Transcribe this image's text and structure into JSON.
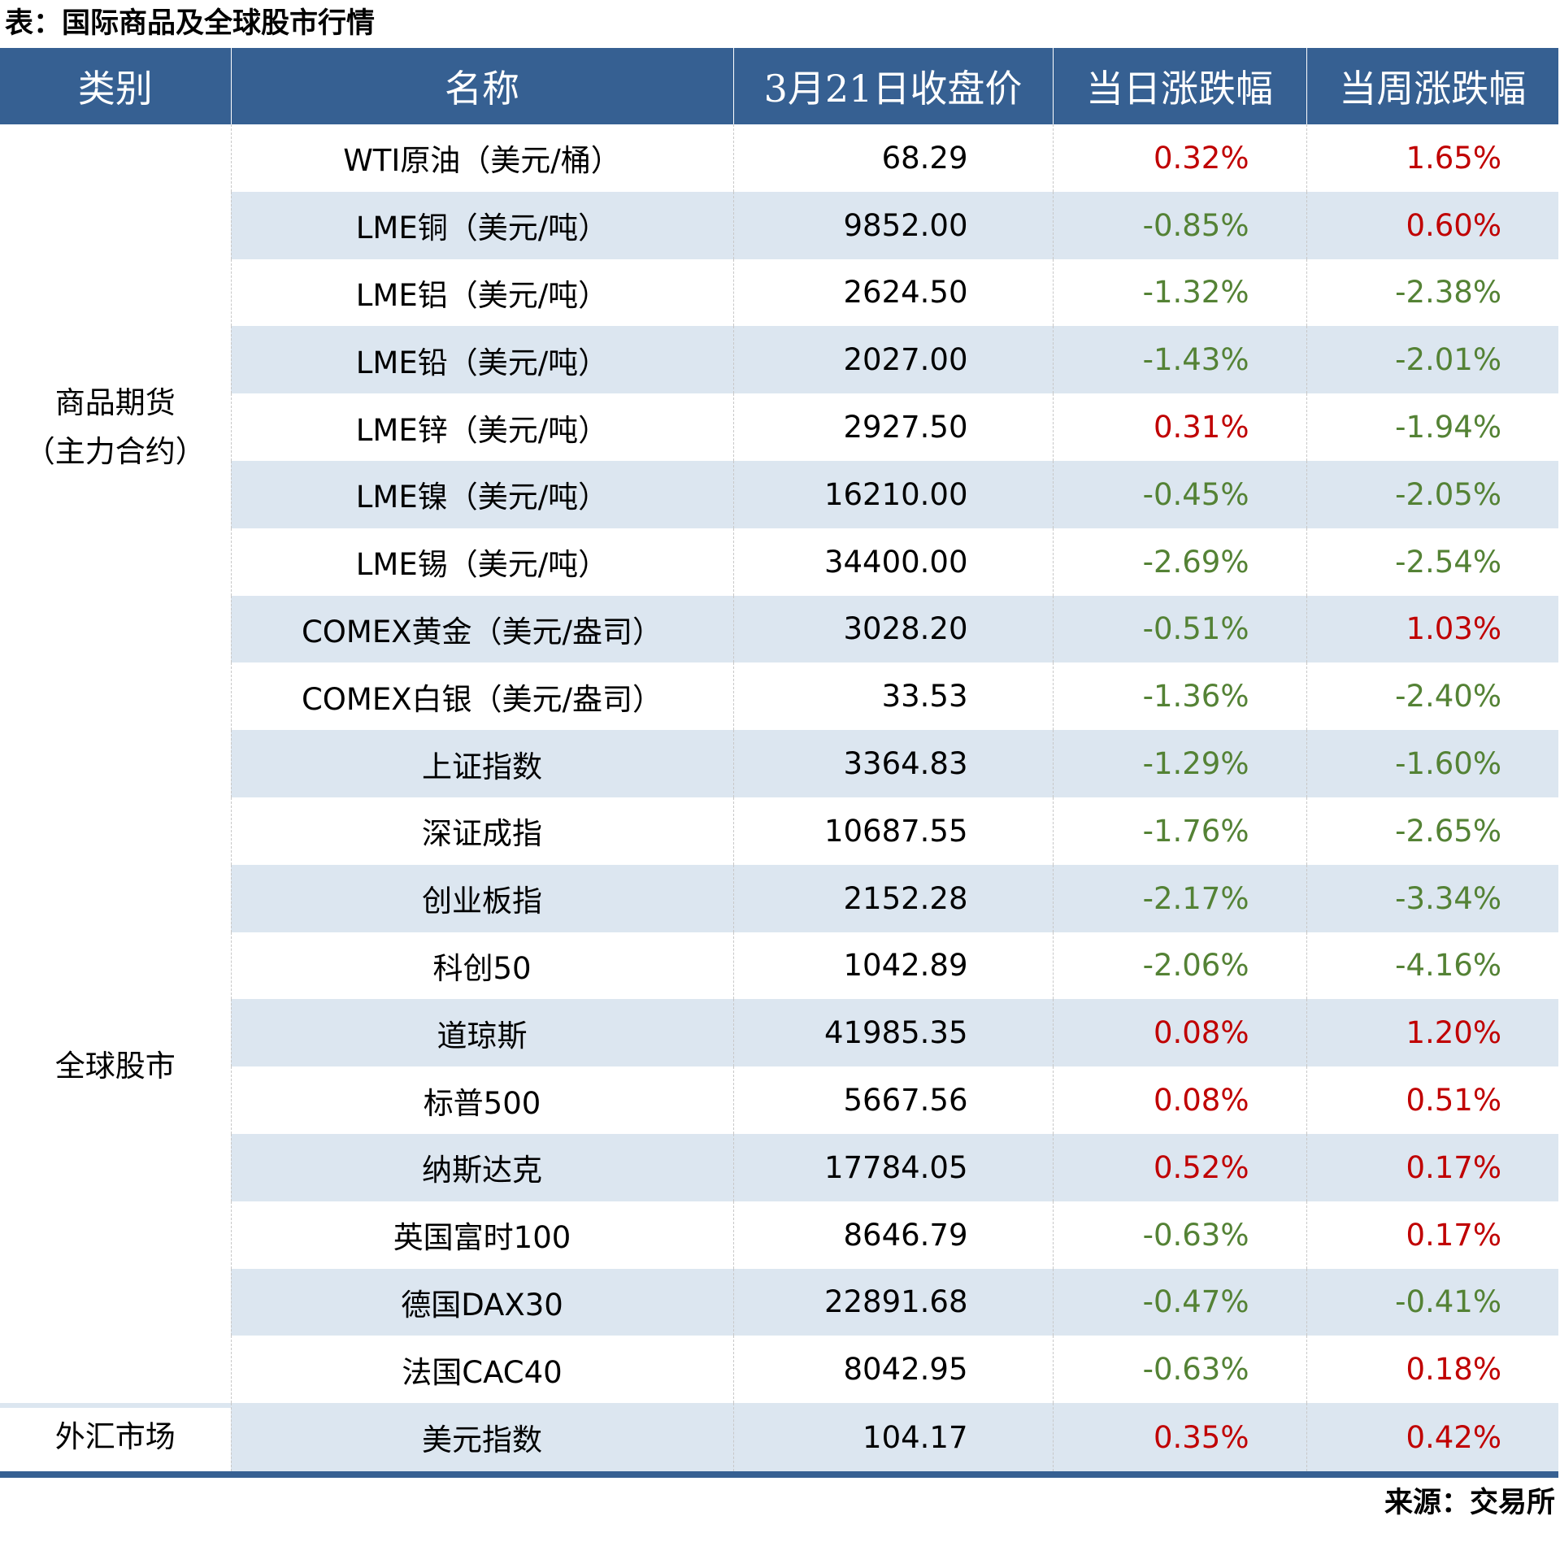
{
  "title": "表：国际商品及全球股市行情",
  "headers": [
    "类别",
    "名称",
    "3月21日收盘价",
    "当日涨跌幅",
    "当周涨跌幅"
  ],
  "colors": {
    "header": "#366092",
    "stripe": "#dce6f0",
    "up": "#c00000",
    "down": "#548235"
  },
  "groups": [
    {
      "label": "商品期货\n（主力合约）",
      "rows": [
        {
          "name": "WTI原油（美元/桶）",
          "close": "68.29",
          "day": "0.32%",
          "week": "1.65%"
        },
        {
          "name": "LME铜（美元/吨）",
          "close": "9852.00",
          "day": "-0.85%",
          "week": "0.60%"
        },
        {
          "name": "LME铝（美元/吨）",
          "close": "2624.50",
          "day": "-1.32%",
          "week": "-2.38%"
        },
        {
          "name": "LME铅（美元/吨）",
          "close": "2027.00",
          "day": "-1.43%",
          "week": "-2.01%"
        },
        {
          "name": "LME锌（美元/吨）",
          "close": "2927.50",
          "day": "0.31%",
          "week": "-1.94%"
        },
        {
          "name": "LME镍（美元/吨）",
          "close": "16210.00",
          "day": "-0.45%",
          "week": "-2.05%"
        },
        {
          "name": "LME锡（美元/吨）",
          "close": "34400.00",
          "day": "-2.69%",
          "week": "-2.54%"
        },
        {
          "name": "COMEX黄金（美元/盎司）",
          "close": "3028.20",
          "day": "-0.51%",
          "week": "1.03%"
        },
        {
          "name": "COMEX白银（美元/盎司）",
          "close": "33.53",
          "day": "-1.36%",
          "week": "-2.40%"
        }
      ]
    },
    {
      "label": "全球股市",
      "rows": [
        {
          "name": "上证指数",
          "close": "3364.83",
          "day": "-1.29%",
          "week": "-1.60%"
        },
        {
          "name": "深证成指",
          "close": "10687.55",
          "day": "-1.76%",
          "week": "-2.65%"
        },
        {
          "name": "创业板指",
          "close": "2152.28",
          "day": "-2.17%",
          "week": "-3.34%"
        },
        {
          "name": "科创50",
          "close": "1042.89",
          "day": "-2.06%",
          "week": "-4.16%"
        },
        {
          "name": "道琼斯",
          "close": "41985.35",
          "day": "0.08%",
          "week": "1.20%"
        },
        {
          "name": "标普500",
          "close": "5667.56",
          "day": "0.08%",
          "week": "0.51%"
        },
        {
          "name": "纳斯达克",
          "close": "17784.05",
          "day": "0.52%",
          "week": "0.17%"
        },
        {
          "name": "英国富时100",
          "close": "8646.79",
          "day": "-0.63%",
          "week": "0.17%"
        },
        {
          "name": "德国DAX30",
          "close": "22891.68",
          "day": "-0.47%",
          "week": "-0.41%"
        },
        {
          "name": "法国CAC40",
          "close": "8042.95",
          "day": "-0.63%",
          "week": "0.18%"
        }
      ]
    },
    {
      "label": "外汇市场",
      "rows": [
        {
          "name": "美元指数",
          "close": "104.17",
          "day": "0.35%",
          "week": "0.42%"
        }
      ]
    }
  ],
  "source": "来源：交易所"
}
